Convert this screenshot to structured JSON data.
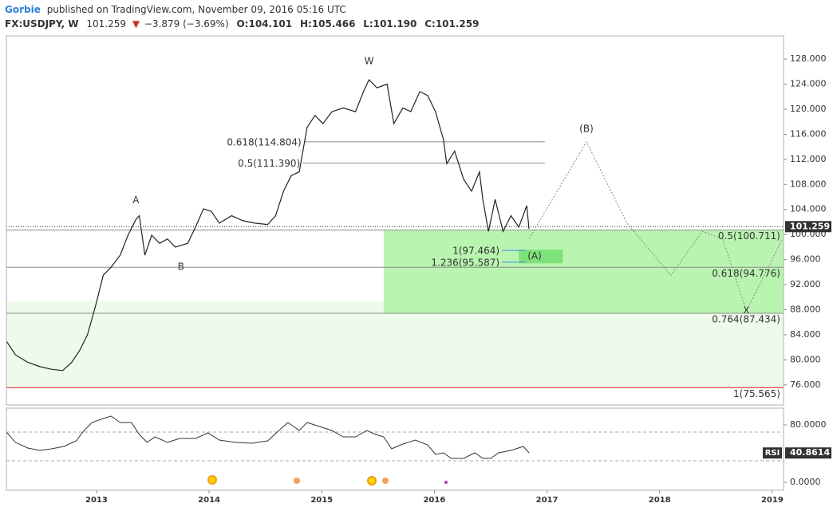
{
  "header": {
    "author": "Gorbie",
    "published": "published on TradingView.com, November 09, 2016 05:16 UTC",
    "symbol": "FX:USDJPY, W",
    "last": "101.259",
    "change": "−3.879 (−3.69%)",
    "open": "O:104.101",
    "high": "H:105.466",
    "low": "L:101.190",
    "close": "C:101.259"
  },
  "chart_data": [
    {
      "type": "line",
      "color": "#222222",
      "x": [
        2012.2,
        2012.28,
        2012.39,
        2012.5,
        2012.6,
        2012.7,
        2012.78,
        2012.85,
        2012.92,
        2012.99,
        2013.06,
        2013.13,
        2013.21,
        2013.28,
        2013.35,
        2013.38,
        2013.43,
        2013.49,
        2013.56,
        2013.63,
        2013.7,
        2013.81,
        2013.88,
        2013.95,
        2014.02,
        2014.09,
        2014.2,
        2014.3,
        2014.41,
        2014.52,
        2014.59,
        2014.66,
        2014.73,
        2014.8,
        2014.87,
        2014.94,
        2015.01,
        2015.09,
        2015.19,
        2015.3,
        2015.37,
        2015.42,
        2015.49,
        2015.58,
        2015.64,
        2015.72,
        2015.79,
        2015.87,
        2015.94,
        2016.01,
        2016.08,
        2016.11,
        2016.18,
        2016.26,
        2016.33,
        2016.4,
        2016.43,
        2016.48,
        2016.54,
        2016.61,
        2016.68,
        2016.75,
        2016.82,
        2016.84
      ],
      "values": [
        83.0,
        80.8,
        79.6,
        78.9,
        78.5,
        78.3,
        79.6,
        81.5,
        84.0,
        88.5,
        93.5,
        94.8,
        96.7,
        99.9,
        102.4,
        103.0,
        96.7,
        99.9,
        98.6,
        99.3,
        98.0,
        98.6,
        101.2,
        104.1,
        103.7,
        101.8,
        103.0,
        102.2,
        101.8,
        101.6,
        103.0,
        106.9,
        109.4,
        110.0,
        117.1,
        119.0,
        117.7,
        119.6,
        120.2,
        119.6,
        122.8,
        124.7,
        123.4,
        124.0,
        117.7,
        120.2,
        119.6,
        122.8,
        122.2,
        119.6,
        115.2,
        111.3,
        113.3,
        108.8,
        106.9,
        110.0,
        105.6,
        100.5,
        105.6,
        100.5,
        103.0,
        101.2,
        104.6,
        100.9
      ],
      "projection": {
        "color": "#888888",
        "x": [
          2016.84,
          2017.35,
          2017.71,
          2018.1,
          2018.38,
          2018.56,
          2018.77,
          2019.09
        ],
        "values": [
          99.3,
          114.8,
          101.8,
          93.5,
          100.5,
          99.3,
          87.8,
          99.3
        ]
      },
      "xlim": [
        2012.2,
        2019.1
      ],
      "xticks": [
        2013,
        2014,
        2015,
        2016,
        2017,
        2018,
        2019
      ],
      "ylim": [
        72.8,
        131.7
      ],
      "yticks": [
        {
          "value": 76,
          "label": "76.000"
        },
        {
          "value": 80,
          "label": "80.000"
        },
        {
          "value": 84,
          "label": "84.000"
        },
        {
          "value": 88,
          "label": "88.000"
        },
        {
          "value": 92,
          "label": "92.000"
        },
        {
          "value": 96,
          "label": "96.000"
        },
        {
          "value": 100,
          "label": "100.000"
        },
        {
          "value": 104,
          "label": "104.000"
        },
        {
          "value": 108,
          "label": "108.000"
        },
        {
          "value": 112,
          "label": "112.000"
        },
        {
          "value": 116,
          "label": "116.000"
        },
        {
          "value": 120,
          "label": "120.000"
        },
        {
          "value": 124,
          "label": "124.000"
        },
        {
          "value": 128,
          "label": "128.000"
        }
      ],
      "current_price": {
        "value": 101.259,
        "label": "101.259"
      },
      "zones": [
        {
          "y": [
            75.565,
            89.35
          ],
          "x": [
            2012.2,
            2019.1
          ],
          "color": "#eefbea"
        },
        {
          "y": [
            87.434,
            100.711
          ],
          "x": [
            2015.55,
            2019.1
          ],
          "color": "#b9f5b0"
        },
        {
          "y": [
            95.4,
            97.6
          ],
          "x": [
            2016.75,
            2017.14
          ],
          "color": "#7ee27a"
        }
      ],
      "levels": [
        {
          "value": 114.804,
          "label": "0.618(114.804)",
          "x": [
            2014.84,
            2016.98
          ],
          "color": "#999999"
        },
        {
          "value": 111.39,
          "label": "0.5(111.390)",
          "x": [
            2014.83,
            2016.98
          ],
          "color": "#999999"
        },
        {
          "value": 97.464,
          "label": "1(97.464)",
          "x": [
            2016.6,
            2016.81
          ],
          "color": "#3d8ee6"
        },
        {
          "value": 95.587,
          "label": "1.236(95.587)",
          "x": [
            2016.6,
            2016.81
          ],
          "color": "#3d8ee6"
        },
        {
          "value": 100.711,
          "label": "0.5(100.711)",
          "x": [
            2012.2,
            2019.1
          ],
          "color": "#999999"
        },
        {
          "value": 94.776,
          "label": "0.618(94.776)",
          "x": [
            2012.2,
            2019.1
          ],
          "color": "#999999"
        },
        {
          "value": 87.434,
          "label": "0.764(87.434)",
          "x": [
            2012.2,
            2019.1
          ],
          "color": "#999999"
        },
        {
          "value": 75.565,
          "label": "1(75.565)",
          "x": [
            2012.2,
            2019.1
          ],
          "color": "#e0141e"
        }
      ],
      "annotations": [
        {
          "text": "W",
          "x": 2015.42,
          "y": 127.6,
          "color": "#333333"
        },
        {
          "text": "A",
          "x": 2013.35,
          "y": 105.4,
          "color": "#333333"
        },
        {
          "text": "B",
          "x": 2013.75,
          "y": 94.8,
          "color": "#333333"
        },
        {
          "text": "(B)",
          "x": 2017.35,
          "y": 116.8,
          "color": "#1f6fd0"
        },
        {
          "text": "(A)",
          "x": 2016.89,
          "y": 96.5,
          "color": "#1f6fd0"
        },
        {
          "text": "X",
          "x": 2018.77,
          "y": 87.8,
          "color": "#111111"
        }
      ]
    },
    {
      "type": "line",
      "color": "#333333",
      "label": "RSI",
      "x": [
        2012.2,
        2012.28,
        2012.39,
        2012.5,
        2012.6,
        2012.71,
        2012.82,
        2012.89,
        2012.96,
        2013.06,
        2013.13,
        2013.21,
        2013.31,
        2013.38,
        2013.45,
        2013.52,
        2013.63,
        2013.74,
        2013.88,
        2013.99,
        2014.09,
        2014.23,
        2014.38,
        2014.52,
        2014.62,
        2014.7,
        2014.8,
        2014.87,
        2014.98,
        2015.09,
        2015.19,
        2015.3,
        2015.4,
        2015.48,
        2015.55,
        2015.62,
        2015.72,
        2015.83,
        2015.94,
        2016.01,
        2016.08,
        2016.15,
        2016.26,
        2016.36,
        2016.43,
        2016.5,
        2016.57,
        2016.68,
        2016.79,
        2016.84
      ],
      "values": [
        70,
        55.6,
        47.8,
        44.4,
        46.7,
        50,
        57.8,
        72.2,
        83.3,
        88.9,
        92.2,
        83.3,
        83.3,
        66.7,
        55.6,
        63.3,
        55.6,
        61.1,
        61.1,
        68.9,
        58.9,
        55.6,
        54.4,
        57.8,
        72.2,
        83.3,
        72.2,
        83.3,
        77.8,
        72.2,
        63.3,
        63.3,
        72.2,
        66.7,
        63.3,
        46.7,
        53.3,
        58.9,
        52.2,
        38.9,
        41.1,
        33.3,
        33.3,
        41.1,
        33.3,
        33.3,
        41.1,
        44.4,
        50,
        41.1
      ],
      "xlim": [
        2012.2,
        2019.1
      ],
      "ylim": [
        -11.1,
        103.3
      ],
      "yticks": [
        {
          "value": 80,
          "label": "80.0000"
        },
        {
          "value": 0,
          "label": "0.0000"
        }
      ],
      "bands": [
        70,
        30
      ],
      "last": {
        "value": 40.8614,
        "label": "40.8614"
      }
    }
  ]
}
